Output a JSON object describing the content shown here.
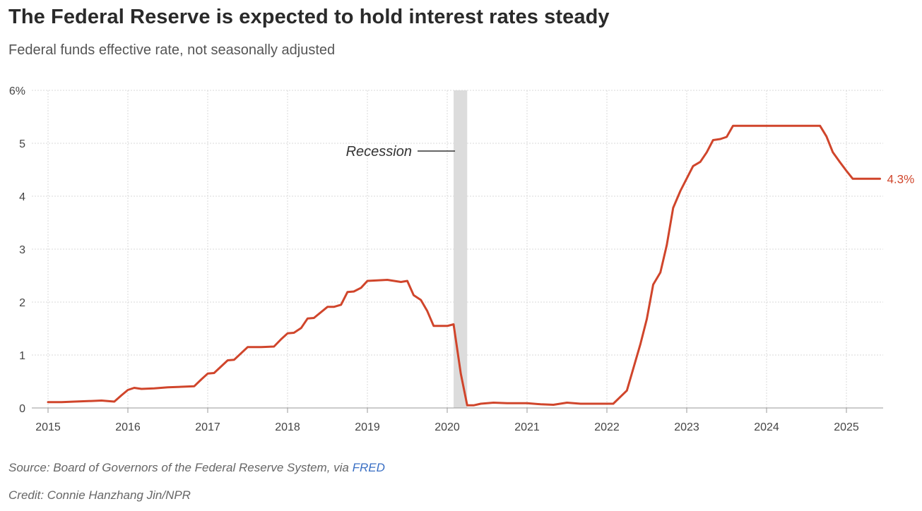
{
  "title": "The Federal Reserve is expected to hold interest rates steady",
  "subtitle": "Federal funds effective rate, not seasonally adjusted",
  "footer": {
    "source_prefix": "Source: Board of Governors of the Federal Reserve System, via ",
    "source_link": "FRED",
    "credit": "Credit: Connie Hanzhang Jin/NPR"
  },
  "colors": {
    "line": "#d0452b",
    "grid": "#d9d9d9",
    "recession": "#dcdcdc",
    "link": "#3a6fc4"
  },
  "chart_data": {
    "type": "line",
    "title": "The Federal Reserve is expected to hold interest rates steady",
    "subtitle": "Federal funds effective rate, not seasonally adjusted",
    "xlim": [
      2015,
      2025.5
    ],
    "ylim": [
      0,
      6
    ],
    "x_ticks": [
      2015,
      2016,
      2017,
      2018,
      2019,
      2020,
      2021,
      2022,
      2023,
      2024,
      2025
    ],
    "y_ticks": [
      0,
      1,
      2,
      3,
      4,
      5,
      6
    ],
    "y_tick_labels": [
      "0",
      "1",
      "2",
      "3",
      "4",
      "5",
      "6%"
    ],
    "grid": true,
    "recession": {
      "label": "Recession",
      "start": 2020.08,
      "end": 2020.25
    },
    "end_label": "4.3%",
    "series": [
      {
        "color": "#d0452b",
        "points": [
          [
            2015.0,
            0.11
          ],
          [
            2015.17,
            0.11
          ],
          [
            2015.33,
            0.12
          ],
          [
            2015.5,
            0.13
          ],
          [
            2015.67,
            0.14
          ],
          [
            2015.83,
            0.12
          ],
          [
            2015.92,
            0.24
          ],
          [
            2016.0,
            0.34
          ],
          [
            2016.08,
            0.38
          ],
          [
            2016.17,
            0.36
          ],
          [
            2016.33,
            0.37
          ],
          [
            2016.5,
            0.39
          ],
          [
            2016.67,
            0.4
          ],
          [
            2016.83,
            0.41
          ],
          [
            2016.92,
            0.54
          ],
          [
            2017.0,
            0.65
          ],
          [
            2017.08,
            0.66
          ],
          [
            2017.25,
            0.9
          ],
          [
            2017.33,
            0.91
          ],
          [
            2017.5,
            1.15
          ],
          [
            2017.67,
            1.15
          ],
          [
            2017.83,
            1.16
          ],
          [
            2017.92,
            1.3
          ],
          [
            2018.0,
            1.41
          ],
          [
            2018.08,
            1.42
          ],
          [
            2018.17,
            1.51
          ],
          [
            2018.25,
            1.69
          ],
          [
            2018.33,
            1.7
          ],
          [
            2018.5,
            1.91
          ],
          [
            2018.58,
            1.91
          ],
          [
            2018.67,
            1.95
          ],
          [
            2018.75,
            2.19
          ],
          [
            2018.83,
            2.2
          ],
          [
            2018.92,
            2.27
          ],
          [
            2019.0,
            2.4
          ],
          [
            2019.25,
            2.42
          ],
          [
            2019.42,
            2.38
          ],
          [
            2019.5,
            2.4
          ],
          [
            2019.58,
            2.13
          ],
          [
            2019.67,
            2.04
          ],
          [
            2019.75,
            1.83
          ],
          [
            2019.83,
            1.55
          ],
          [
            2020.0,
            1.55
          ],
          [
            2020.08,
            1.58
          ],
          [
            2020.17,
            0.65
          ],
          [
            2020.25,
            0.05
          ],
          [
            2020.33,
            0.05
          ],
          [
            2020.42,
            0.08
          ],
          [
            2020.58,
            0.1
          ],
          [
            2020.75,
            0.09
          ],
          [
            2021.0,
            0.09
          ],
          [
            2021.17,
            0.07
          ],
          [
            2021.33,
            0.06
          ],
          [
            2021.5,
            0.1
          ],
          [
            2021.67,
            0.08
          ],
          [
            2022.0,
            0.08
          ],
          [
            2022.08,
            0.08
          ],
          [
            2022.25,
            0.33
          ],
          [
            2022.42,
            1.21
          ],
          [
            2022.5,
            1.68
          ],
          [
            2022.58,
            2.33
          ],
          [
            2022.67,
            2.56
          ],
          [
            2022.75,
            3.08
          ],
          [
            2022.83,
            3.78
          ],
          [
            2022.92,
            4.1
          ],
          [
            2023.08,
            4.57
          ],
          [
            2023.17,
            4.65
          ],
          [
            2023.25,
            4.83
          ],
          [
            2023.33,
            5.06
          ],
          [
            2023.42,
            5.08
          ],
          [
            2023.5,
            5.12
          ],
          [
            2023.58,
            5.33
          ],
          [
            2024.67,
            5.33
          ],
          [
            2024.75,
            5.13
          ],
          [
            2024.83,
            4.83
          ],
          [
            2024.92,
            4.64
          ],
          [
            2025.0,
            4.48
          ],
          [
            2025.08,
            4.33
          ],
          [
            2025.42,
            4.33
          ]
        ]
      }
    ]
  }
}
